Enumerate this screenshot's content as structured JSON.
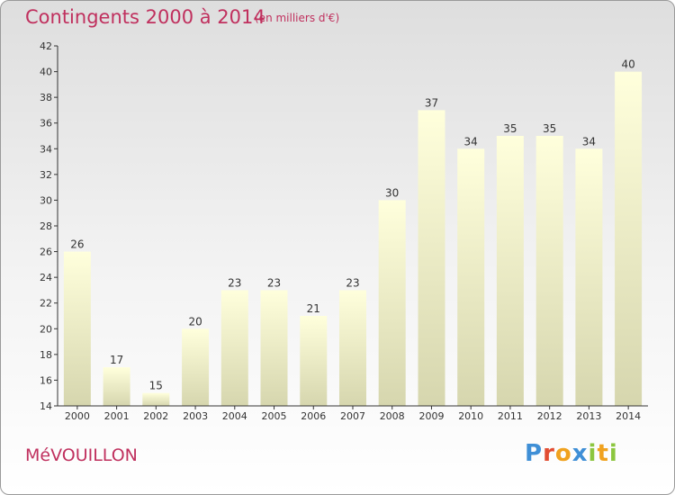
{
  "header": {
    "title": "Contingents 2000 à 2014",
    "unit": "(en milliers d'€)"
  },
  "footer": {
    "commune": "MéVOUILLON",
    "brand_letters": [
      {
        "ch": "P",
        "color": "#3f8fd6"
      },
      {
        "ch": "r",
        "color": "#e24d32"
      },
      {
        "ch": "o",
        "color": "#f0a21f"
      },
      {
        "ch": "x",
        "color": "#3f8fd6"
      },
      {
        "ch": "i",
        "color": "#8cc63f"
      },
      {
        "ch": "t",
        "color": "#f0a21f"
      },
      {
        "ch": "i",
        "color": "#8cc63f"
      }
    ]
  },
  "colors": {
    "accent": "#c0305e",
    "bar_top": "#ffffdc",
    "bar_bottom": "#d6d6ae",
    "axis": "#333333"
  },
  "chart_data": {
    "type": "bar",
    "title": "Contingents 2000 à 2014",
    "categories": [
      "2000",
      "2001",
      "2002",
      "2003",
      "2004",
      "2005",
      "2006",
      "2007",
      "2008",
      "2009",
      "2010",
      "2011",
      "2012",
      "2013",
      "2014"
    ],
    "values": [
      26,
      17,
      15,
      20,
      23,
      23,
      21,
      23,
      30,
      37,
      34,
      35,
      35,
      34,
      40
    ],
    "ylim": [
      14,
      42
    ],
    "yticks": [
      14,
      16,
      18,
      20,
      22,
      24,
      26,
      28,
      30,
      32,
      34,
      36,
      38,
      40,
      42
    ],
    "grid": false,
    "legend": "none"
  }
}
